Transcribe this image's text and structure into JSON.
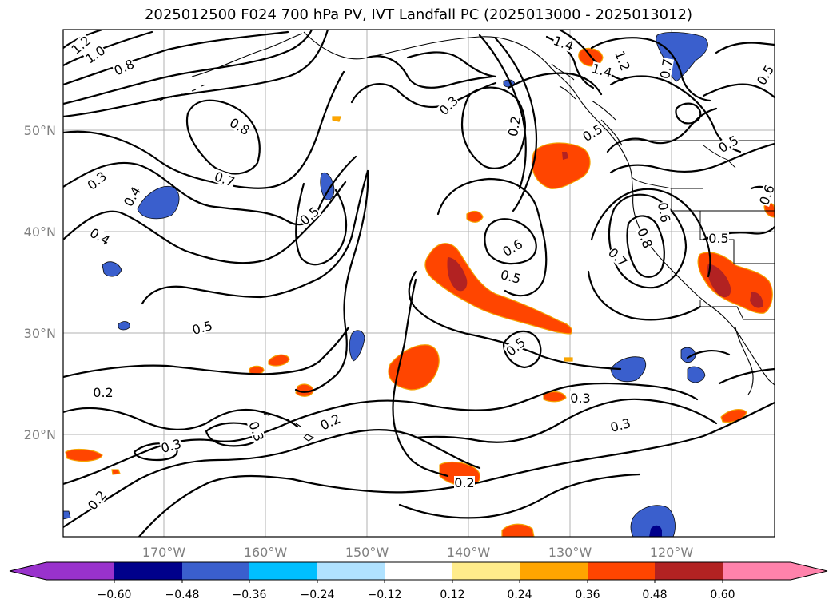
{
  "title": "2025012500 F024 700 hPa PV, IVT Landfall PC (2025013000 - 2025013012)",
  "axes": {
    "x_ticks": [
      "170°W",
      "160°W",
      "150°W",
      "140°W",
      "130°W",
      "120°W"
    ],
    "y_ticks": [
      "50°N",
      "40°N",
      "30°N",
      "20°N"
    ],
    "lon_range": [
      -180,
      -110
    ],
    "lat_range": [
      10,
      60
    ],
    "grid": true
  },
  "pv_contour_labels": [
    "1.2",
    "1.0",
    "0.8",
    "0.8",
    "0.7",
    "0.3",
    "0.4",
    "0.4",
    "0.5",
    "0.5",
    "0.5",
    "0.3",
    "0.2",
    "0.6",
    "0.5",
    "0.5",
    "0.3",
    "0.2",
    "0.3",
    "0.3",
    "0.2",
    "0.2",
    "0.3",
    "0.2",
    "0.7",
    "0.8",
    "0.6",
    "0.5",
    "1.4",
    "1.2",
    "0.5",
    "0.7",
    "0.5",
    "0.6",
    "1.4"
  ],
  "colorbar": {
    "ticks": [
      "−0.60",
      "−0.48",
      "−0.36",
      "−0.24",
      "−0.12",
      "0.12",
      "0.24",
      "0.36",
      "0.48",
      "0.60"
    ],
    "colors": [
      "#9932cc",
      "#00008b",
      "#3a5fcd",
      "#00bfff",
      "#b0e2ff",
      "#ffffff",
      "#ffec8b",
      "#ffa500",
      "#ff4500",
      "#b22222",
      "#ff82ab"
    ]
  },
  "shading": {
    "positive_colors": [
      "#ffec8b",
      "#ffa500",
      "#ff4500",
      "#b22222"
    ],
    "negative_colors": [
      "#b0e2ff",
      "#00bfff",
      "#3a5fcd",
      "#00008b"
    ]
  }
}
